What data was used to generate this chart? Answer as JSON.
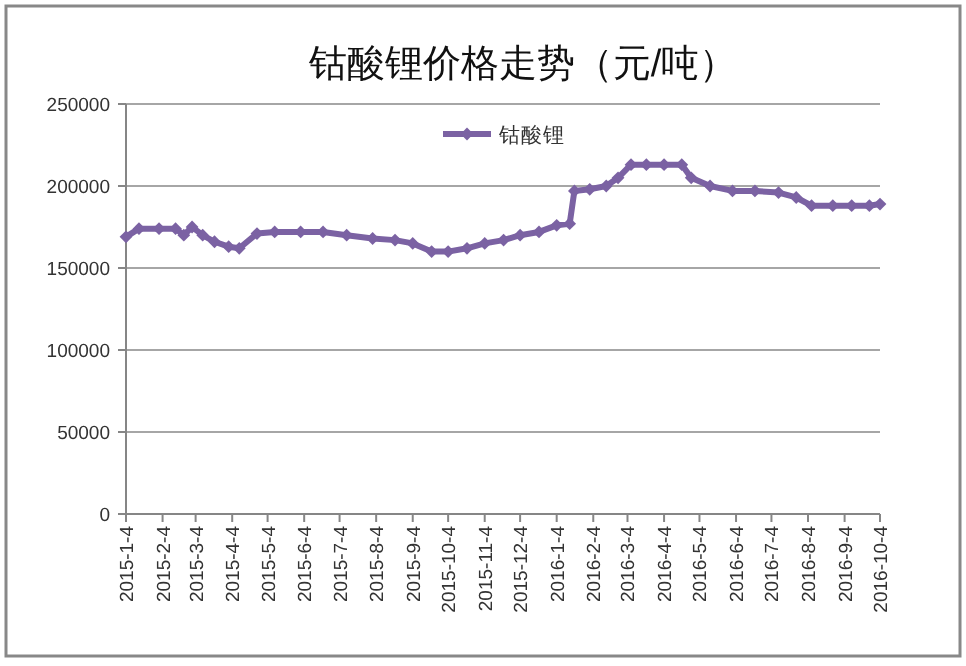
{
  "chart_data": {
    "type": "line",
    "title": "钴酸锂价格走势（元/吨）",
    "x": [
      "2015-01-04",
      "2015-01-15",
      "2015-02-01",
      "2015-02-15",
      "2015-02-22",
      "2015-03-01",
      "2015-03-10",
      "2015-03-20",
      "2015-04-01",
      "2015-04-10",
      "2015-04-25",
      "2015-05-10",
      "2015-06-01",
      "2015-06-20",
      "2015-07-10",
      "2015-08-01",
      "2015-08-20",
      "2015-09-04",
      "2015-09-20",
      "2015-10-04",
      "2015-10-20",
      "2015-11-04",
      "2015-11-20",
      "2015-12-04",
      "2015-12-20",
      "2016-01-04",
      "2016-01-15",
      "2016-01-19",
      "2016-02-01",
      "2016-02-15",
      "2016-02-25",
      "2016-03-07",
      "2016-03-20",
      "2016-04-04",
      "2016-04-19",
      "2016-04-27",
      "2016-05-13",
      "2016-06-01",
      "2016-06-20",
      "2016-07-10",
      "2016-07-25",
      "2016-08-07",
      "2016-08-25",
      "2016-09-10",
      "2016-09-25",
      "2016-10-04"
    ],
    "series": [
      {
        "name": "钴酸锂",
        "color": "#7b62a3",
        "values": [
          169000,
          174000,
          174000,
          174000,
          170000,
          175000,
          170000,
          166000,
          163000,
          162000,
          171000,
          172000,
          172000,
          172000,
          170000,
          168000,
          167000,
          165000,
          160000,
          160000,
          162000,
          165000,
          167000,
          170000,
          172000,
          176000,
          177000,
          197000,
          198000,
          200000,
          205000,
          213000,
          213000,
          213000,
          213000,
          205000,
          200000,
          197000,
          197000,
          196000,
          193000,
          188000,
          188000,
          188000,
          188000,
          189000
        ]
      }
    ],
    "xlim": [
      "2015-01-04",
      "2016-10-04"
    ],
    "xticks": [
      {
        "value": "2015-01-04",
        "label": "2015-1-4"
      },
      {
        "value": "2015-02-04",
        "label": "2015-2-4"
      },
      {
        "value": "2015-03-04",
        "label": "2015-3-4"
      },
      {
        "value": "2015-04-04",
        "label": "2015-4-4"
      },
      {
        "value": "2015-05-04",
        "label": "2015-5-4"
      },
      {
        "value": "2015-06-04",
        "label": "2015-6-4"
      },
      {
        "value": "2015-07-04",
        "label": "2015-7-4"
      },
      {
        "value": "2015-08-04",
        "label": "2015-8-4"
      },
      {
        "value": "2015-09-04",
        "label": "2015-9-4"
      },
      {
        "value": "2015-10-04",
        "label": "2015-10-4"
      },
      {
        "value": "2015-11-04",
        "label": "2015-11-4"
      },
      {
        "value": "2015-12-04",
        "label": "2015-12-4"
      },
      {
        "value": "2016-01-04",
        "label": "2016-1-4"
      },
      {
        "value": "2016-02-04",
        "label": "2016-2-4"
      },
      {
        "value": "2016-03-04",
        "label": "2016-3-4"
      },
      {
        "value": "2016-04-04",
        "label": "2016-4-4"
      },
      {
        "value": "2016-05-04",
        "label": "2016-5-4"
      },
      {
        "value": "2016-06-04",
        "label": "2016-6-4"
      },
      {
        "value": "2016-07-04",
        "label": "2016-7-4"
      },
      {
        "value": "2016-08-04",
        "label": "2016-8-4"
      },
      {
        "value": "2016-09-04",
        "label": "2016-9-4"
      },
      {
        "value": "2016-10-04",
        "label": "2016-10-4"
      }
    ],
    "ylim": [
      0,
      250000
    ],
    "yticks": [
      0,
      50000,
      100000,
      150000,
      200000,
      250000
    ],
    "grid": "y",
    "legend": "top",
    "marker": "diamond",
    "line_style": "solid"
  }
}
